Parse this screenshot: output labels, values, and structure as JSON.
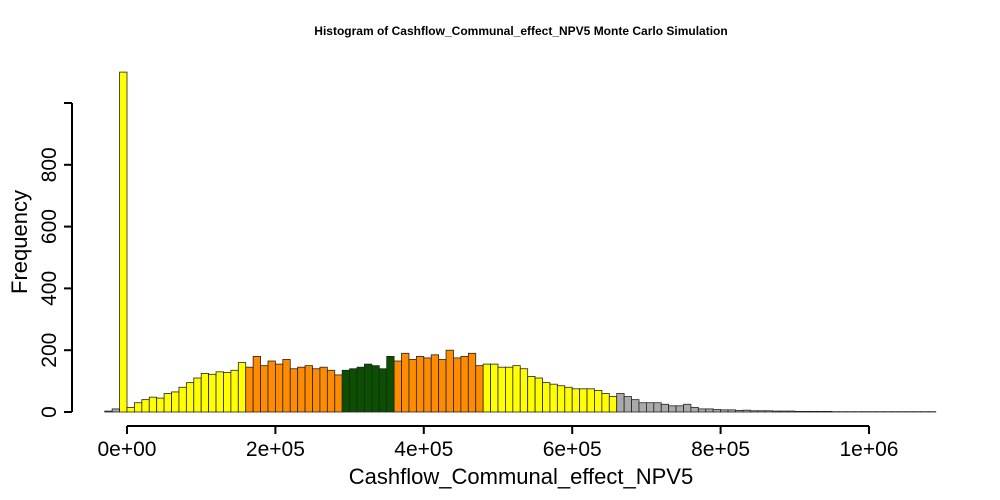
{
  "chart_data": {
    "type": "bar",
    "title": "Histogram of  Cashflow_Communal_effect_NPV5  Monte Carlo Simulation",
    "xlabel": "Cashflow_Communal_effect_NPV5",
    "ylabel": "Frequency",
    "xlim": [
      -30000,
      1090000
    ],
    "ylim": [
      0,
      1000
    ],
    "bin_width": 10000,
    "bin_start": -30000,
    "xticks": [
      0,
      200000,
      400000,
      600000,
      800000,
      1000000
    ],
    "xtick_labels": [
      "0e+00",
      "2e+05",
      "4e+05",
      "6e+05",
      "8e+05",
      "1e+06"
    ],
    "yticks": [
      0,
      200,
      400,
      600,
      800,
      1000
    ],
    "ytick_labels": [
      "0",
      "200",
      "400",
      "600",
      "800",
      ""
    ],
    "colors": {
      "grey": "#aaaaaa",
      "yellow": "#ffff00",
      "orange": "#ff8c00",
      "green": "#0a5000"
    },
    "color_bands": [
      {
        "from": -30000,
        "to": -10000,
        "color": "grey"
      },
      {
        "from": -10000,
        "to": 160000,
        "color": "yellow"
      },
      {
        "from": 160000,
        "to": 290000,
        "color": "orange"
      },
      {
        "from": 290000,
        "to": 360000,
        "color": "green"
      },
      {
        "from": 360000,
        "to": 480000,
        "color": "orange"
      },
      {
        "from": 480000,
        "to": 660000,
        "color": "yellow"
      },
      {
        "from": 660000,
        "to": 1090000,
        "color": "grey"
      }
    ],
    "values": [
      3,
      10,
      1100,
      15,
      30,
      40,
      48,
      45,
      60,
      65,
      80,
      95,
      110,
      125,
      122,
      130,
      128,
      135,
      160,
      145,
      180,
      150,
      165,
      155,
      170,
      140,
      145,
      150,
      140,
      145,
      135,
      120,
      135,
      140,
      145,
      155,
      150,
      140,
      180,
      165,
      190,
      170,
      180,
      175,
      185,
      170,
      200,
      175,
      180,
      190,
      150,
      155,
      155,
      145,
      145,
      150,
      140,
      115,
      110,
      95,
      90,
      85,
      80,
      75,
      75,
      75,
      70,
      60,
      50,
      60,
      50,
      40,
      30,
      30,
      30,
      25,
      20,
      20,
      25,
      15,
      10,
      10,
      8,
      7,
      7,
      5,
      6,
      4,
      4,
      4,
      3,
      3,
      3,
      2,
      2,
      2,
      2,
      2,
      1,
      1,
      1,
      1,
      1,
      1,
      1,
      1,
      1,
      1,
      1,
      1,
      1,
      1
    ]
  }
}
